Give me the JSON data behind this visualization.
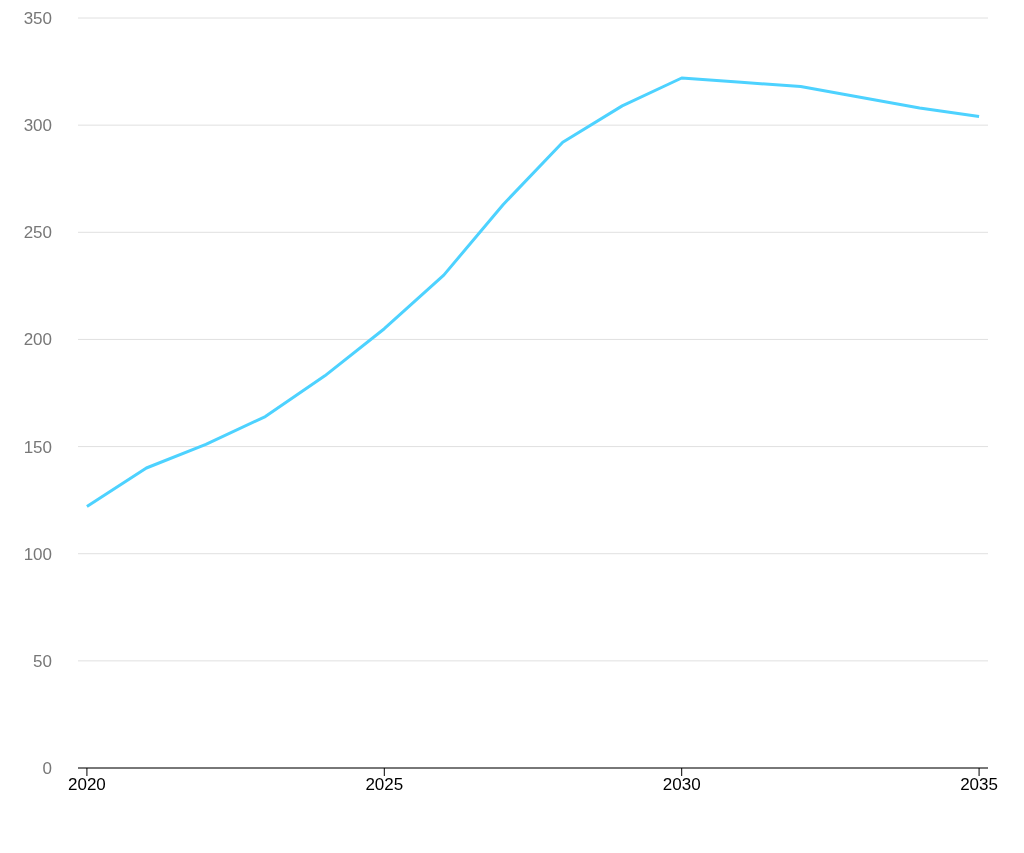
{
  "chart_data": {
    "type": "line",
    "x": [
      2020,
      2021,
      2022,
      2023,
      2024,
      2025,
      2026,
      2027,
      2028,
      2029,
      2030,
      2031,
      2032,
      2033,
      2034,
      2035
    ],
    "series": [
      {
        "color": "#4dd2ff",
        "values": [
          122,
          140,
          151,
          164,
          183,
          205,
          230,
          263,
          292,
          309,
          322,
          320,
          318,
          313,
          308,
          304
        ]
      }
    ],
    "xlim": [
      2019.85,
      2035.15
    ],
    "xticks": [
      2020,
      2025,
      2030,
      2035
    ],
    "ylim": [
      0,
      350
    ],
    "yticks": [
      0,
      50,
      100,
      150,
      200,
      250,
      300,
      350
    ],
    "grid": "y",
    "marker": "none",
    "line_style": "solid",
    "legend": false
  }
}
